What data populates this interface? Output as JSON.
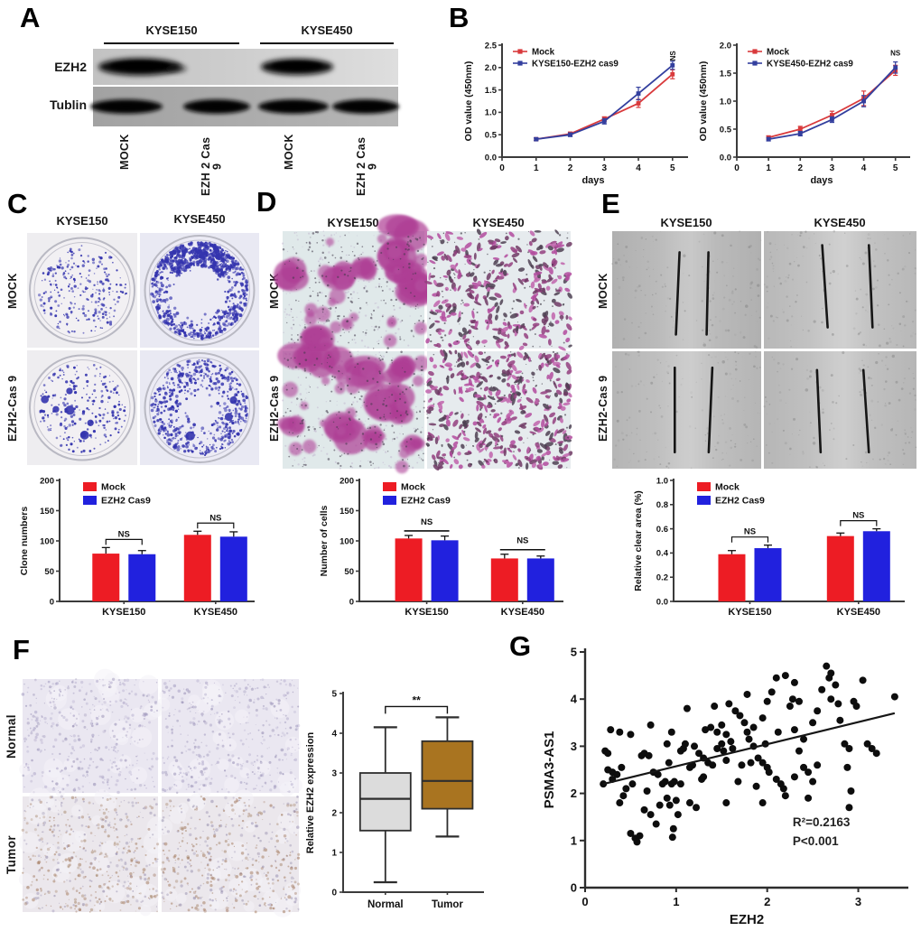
{
  "figure": {
    "panels": {
      "A": {
        "label": "A",
        "col_groups": [
          "KYSE150",
          "KYSE450"
        ],
        "row_labels": [
          "EZH2",
          "Tublin"
        ],
        "lane_labels": [
          "MOCK",
          "EZH 2 Cas 9",
          "MOCK",
          "EZH 2 Cas 9"
        ]
      },
      "B": {
        "label": "B"
      },
      "C": {
        "label": "C",
        "col_labels": [
          "KYSE150",
          "KYSE450"
        ],
        "row_labels": [
          "MOCK",
          "EZH2-Cas 9"
        ]
      },
      "D": {
        "label": "D",
        "col_labels": [
          "KYSE150",
          "KYSE450"
        ],
        "row_labels": [
          "MOCK",
          "EZH2-Cas 9"
        ]
      },
      "E": {
        "label": "E",
        "col_labels": [
          "KYSE150",
          "KYSE450"
        ],
        "row_labels": [
          "MOCK",
          "EZH2-Cas 9"
        ]
      },
      "F": {
        "label": "F",
        "row_labels": [
          "Normal",
          "Tumor"
        ]
      },
      "G": {
        "label": "G"
      }
    },
    "colors": {
      "bar_red": "#ed1c24",
      "bar_blue": "#2121de",
      "line_red": "#d93a3c",
      "line_blue": "#333f9e",
      "colony_stain": "#3434ae",
      "transwell_stain": "#ae3c94",
      "box_normal": "#dcdcdc",
      "box_tumor": "#a97420",
      "scatter_point": "#0d0d0d"
    }
  },
  "chart_data": [
    {
      "id": "B-KYSE150",
      "type": "line",
      "xlabel": "days",
      "ylabel": "OD value (450nm)",
      "xlim": [
        0,
        5.35
      ],
      "ylim": [
        0,
        2.5
      ],
      "yticks": [
        "0.0",
        "0.5",
        "1.0",
        "1.5",
        "2.0",
        "2.5"
      ],
      "xticks": [
        "0",
        "1",
        "2",
        "3",
        "4",
        "5"
      ],
      "x": [
        1,
        2,
        3,
        4,
        5
      ],
      "sig": "NS",
      "sig_rotated": true,
      "series": [
        {
          "name": "Mock",
          "color": "#d93a3c",
          "values": [
            0.4,
            0.52,
            0.85,
            1.2,
            1.85
          ],
          "err": [
            0.03,
            0.04,
            0.05,
            0.09,
            0.1
          ]
        },
        {
          "name": "KYSE150-EZH2 cas9",
          "color": "#333f9e",
          "values": [
            0.4,
            0.5,
            0.8,
            1.42,
            2.05
          ],
          "err": [
            0.03,
            0.04,
            0.06,
            0.14,
            0.09
          ]
        }
      ]
    },
    {
      "id": "B-KYSE450",
      "type": "line",
      "xlabel": "days",
      "ylabel": "OD value (450nm)",
      "xlim": [
        0,
        5.35
      ],
      "ylim": [
        0,
        2.0
      ],
      "yticks": [
        "0.0",
        "0.5",
        "1.0",
        "1.5",
        "2.0"
      ],
      "xticks": [
        "0",
        "1",
        "2",
        "3",
        "4",
        "5"
      ],
      "x": [
        1,
        2,
        3,
        4,
        5
      ],
      "sig": "NS",
      "sig_rotated": false,
      "series": [
        {
          "name": "Mock",
          "color": "#d93a3c",
          "values": [
            0.35,
            0.5,
            0.75,
            1.05,
            1.55
          ],
          "err": [
            0.03,
            0.05,
            0.07,
            0.13,
            0.09
          ]
        },
        {
          "name": "KYSE450-EZH2 cas9",
          "color": "#333f9e",
          "values": [
            0.32,
            0.42,
            0.67,
            1.0,
            1.6
          ],
          "err": [
            0.03,
            0.04,
            0.05,
            0.1,
            0.1
          ]
        }
      ]
    },
    {
      "id": "C-clones",
      "type": "bar",
      "ylabel": "Clone numbers",
      "ylim": [
        0,
        200
      ],
      "yticks": [
        "0",
        "50",
        "100",
        "150",
        "200"
      ],
      "categories": [
        "KYSE150",
        "KYSE450"
      ],
      "sig": [
        "NS",
        "NS"
      ],
      "sig_style": "bracket",
      "series": [
        {
          "name": "Mock",
          "color": "#ed1c24",
          "values": [
            79,
            110
          ],
          "err": [
            10,
            6
          ]
        },
        {
          "name": "EZH2 Cas9",
          "color": "#2121de",
          "values": [
            78,
            107
          ],
          "err": [
            6,
            8
          ]
        }
      ]
    },
    {
      "id": "D-cells",
      "type": "bar",
      "ylabel": "Number of cells",
      "ylim": [
        0,
        200
      ],
      "yticks": [
        "0",
        "50",
        "100",
        "150",
        "200"
      ],
      "categories": [
        "KYSE150",
        "KYSE450"
      ],
      "sig": [
        "NS",
        "NS"
      ],
      "sig_style": "line",
      "series": [
        {
          "name": "Mock",
          "color": "#ed1c24",
          "values": [
            104,
            71
          ],
          "err": [
            5,
            7
          ]
        },
        {
          "name": "EZH2 Cas9",
          "color": "#2121de",
          "values": [
            101,
            71
          ],
          "err": [
            7,
            4
          ]
        }
      ]
    },
    {
      "id": "E-cleararea",
      "type": "bar",
      "ylabel": "Relative clear area (%)",
      "ylim": [
        0,
        1
      ],
      "yticks": [
        "0.0",
        "0.2",
        "0.4",
        "0.6",
        "0.8",
        "1.0"
      ],
      "categories": [
        "KYSE150",
        "KYSE450"
      ],
      "sig": [
        "NS",
        "NS"
      ],
      "sig_style": "bracket",
      "series": [
        {
          "name": "Mock",
          "color": "#ed1c24",
          "values": [
            0.39,
            0.54
          ],
          "err": [
            0.03,
            0.025
          ]
        },
        {
          "name": "EZH2 Cas9",
          "color": "#2121de",
          "values": [
            0.44,
            0.58
          ],
          "err": [
            0.025,
            0.02
          ]
        }
      ]
    },
    {
      "id": "F-box",
      "type": "box",
      "ylabel": "Relative EZH2 expression",
      "ylim": [
        0,
        5
      ],
      "yticks": [
        "0",
        "1",
        "2",
        "3",
        "4",
        "5"
      ],
      "sig": "**",
      "boxes": [
        {
          "label": "Normal",
          "fill": "#dcdcdc",
          "min": 0.25,
          "q1": 1.55,
          "median": 2.35,
          "q3": 3.0,
          "max": 4.15
        },
        {
          "label": "Tumor",
          "fill": "#a97420",
          "min": 1.4,
          "q1": 2.1,
          "median": 2.8,
          "q3": 3.8,
          "max": 4.4
        }
      ]
    },
    {
      "id": "G-scatter",
      "type": "scatter",
      "xlabel": "EZH2",
      "ylabel": "PSMA3-AS1",
      "xlim": [
        0,
        3.55
      ],
      "ylim": [
        0,
        5
      ],
      "xticks": [
        "0",
        "1",
        "2",
        "3"
      ],
      "yticks": [
        "0",
        "1",
        "2",
        "3",
        "4",
        "5"
      ],
      "annotations": [
        "R²=0.2163",
        "P<0.001"
      ],
      "point_color": "#0d0d0d",
      "trendline": {
        "x1": 0.2,
        "y1": 2.2,
        "x2": 3.4,
        "y2": 3.7
      },
      "points": [
        [
          0.2,
          2.2
        ],
        [
          0.22,
          2.9
        ],
        [
          0.25,
          2.85
        ],
        [
          0.25,
          2.5
        ],
        [
          0.3,
          2.45
        ],
        [
          0.3,
          2.3
        ],
        [
          0.28,
          3.35
        ],
        [
          0.38,
          3.3
        ],
        [
          0.35,
          2.4
        ],
        [
          0.4,
          2.55
        ],
        [
          0.38,
          1.8
        ],
        [
          0.45,
          2.1
        ],
        [
          0.5,
          3.25
        ],
        [
          0.42,
          1.95
        ],
        [
          0.5,
          1.15
        ],
        [
          0.55,
          1.05
        ],
        [
          0.57,
          0.97
        ],
        [
          0.6,
          1.1
        ],
        [
          0.52,
          2.2
        ],
        [
          0.62,
          2.8
        ],
        [
          0.65,
          2.85
        ],
        [
          0.7,
          2.8
        ],
        [
          0.72,
          3.45
        ],
        [
          0.68,
          2.05
        ],
        [
          0.65,
          1.65
        ],
        [
          0.72,
          1.55
        ],
        [
          0.75,
          2.45
        ],
        [
          0.8,
          2.4
        ],
        [
          0.78,
          1.35
        ],
        [
          0.82,
          1.75
        ],
        [
          0.85,
          2.2
        ],
        [
          0.88,
          2.25
        ],
        [
          0.9,
          3.05
        ],
        [
          0.95,
          3.3
        ],
        [
          0.92,
          2.65
        ],
        [
          0.95,
          2.2
        ],
        [
          0.98,
          2.25
        ],
        [
          0.9,
          1.9
        ],
        [
          0.93,
          1.75
        ],
        [
          1.0,
          1.85
        ],
        [
          0.97,
          1.25
        ],
        [
          0.96,
          1.07
        ],
        [
          1.02,
          1.55
        ],
        [
          1.05,
          2.2
        ],
        [
          1.05,
          2.9
        ],
        [
          1.08,
          2.95
        ],
        [
          1.12,
          3.8
        ],
        [
          1.1,
          3.05
        ],
        [
          1.15,
          2.55
        ],
        [
          1.18,
          2.6
        ],
        [
          1.2,
          3.0
        ],
        [
          1.15,
          1.8
        ],
        [
          1.22,
          1.7
        ],
        [
          1.25,
          2.85
        ],
        [
          1.28,
          2.3
        ],
        [
          1.3,
          2.35
        ],
        [
          1.3,
          2.75
        ],
        [
          1.35,
          2.65
        ],
        [
          1.32,
          3.35
        ],
        [
          1.38,
          3.4
        ],
        [
          1.4,
          2.6
        ],
        [
          1.42,
          3.85
        ],
        [
          1.45,
          3.3
        ],
        [
          1.45,
          2.95
        ],
        [
          1.5,
          3.05
        ],
        [
          1.52,
          2.9
        ],
        [
          1.55,
          2.7
        ],
        [
          1.5,
          3.45
        ],
        [
          1.55,
          3.25
        ],
        [
          1.6,
          3.1
        ],
        [
          1.62,
          2.95
        ],
        [
          1.58,
          3.9
        ],
        [
          1.65,
          3.75
        ],
        [
          1.7,
          3.65
        ],
        [
          1.68,
          2.25
        ],
        [
          1.55,
          1.8
        ],
        [
          1.72,
          2.6
        ],
        [
          1.75,
          3.5
        ],
        [
          1.78,
          3.3
        ],
        [
          1.8,
          3.15
        ],
        [
          1.78,
          4.1
        ],
        [
          1.82,
          2.65
        ],
        [
          1.85,
          3.4
        ],
        [
          1.85,
          3.0
        ],
        [
          1.88,
          2.15
        ],
        [
          1.95,
          1.8
        ],
        [
          1.9,
          2.75
        ],
        [
          1.95,
          2.65
        ],
        [
          2.0,
          2.55
        ],
        [
          2.02,
          2.45
        ],
        [
          1.98,
          3.05
        ],
        [
          1.95,
          3.6
        ],
        [
          2.0,
          3.95
        ],
        [
          2.05,
          4.15
        ],
        [
          2.1,
          4.45
        ],
        [
          2.1,
          2.3
        ],
        [
          2.15,
          2.2
        ],
        [
          2.12,
          3.3
        ],
        [
          2.18,
          2.1
        ],
        [
          2.2,
          1.95
        ],
        [
          2.2,
          4.5
        ],
        [
          2.3,
          4.35
        ],
        [
          2.28,
          4.0
        ],
        [
          2.25,
          3.85
        ],
        [
          2.35,
          3.95
        ],
        [
          2.3,
          3.35
        ],
        [
          2.4,
          3.15
        ],
        [
          2.35,
          2.9
        ],
        [
          2.4,
          2.55
        ],
        [
          2.45,
          2.45
        ],
        [
          2.3,
          2.35
        ],
        [
          2.5,
          2.25
        ],
        [
          2.45,
          1.9
        ],
        [
          2.5,
          3.5
        ],
        [
          2.55,
          2.6
        ],
        [
          2.55,
          3.75
        ],
        [
          2.6,
          4.2
        ],
        [
          2.65,
          4.7
        ],
        [
          2.7,
          4.55
        ],
        [
          2.68,
          4.45
        ],
        [
          2.75,
          4.3
        ],
        [
          2.7,
          4.0
        ],
        [
          2.78,
          3.9
        ],
        [
          2.8,
          3.55
        ],
        [
          2.85,
          3.05
        ],
        [
          2.9,
          2.95
        ],
        [
          2.88,
          2.55
        ],
        [
          2.92,
          2.05
        ],
        [
          2.9,
          1.7
        ],
        [
          2.95,
          3.95
        ],
        [
          2.98,
          3.85
        ],
        [
          3.05,
          4.4
        ],
        [
          3.1,
          3.05
        ],
        [
          3.15,
          2.95
        ],
        [
          3.2,
          2.85
        ],
        [
          3.4,
          4.05
        ]
      ]
    }
  ]
}
